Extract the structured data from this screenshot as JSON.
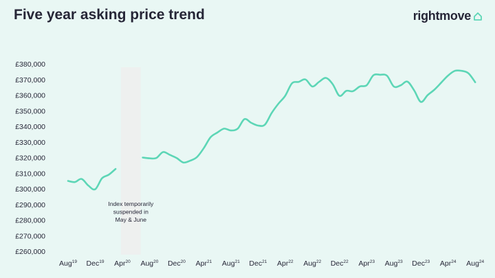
{
  "header": {
    "title": "Five year asking price trend",
    "brand": "rightmove"
  },
  "chart_data": {
    "type": "line",
    "title": "Five year asking price trend",
    "xlabel": "",
    "ylabel": "",
    "ylim": [
      260000,
      380000
    ],
    "y_ticks": [
      {
        "value": 380000,
        "label": "£380,000"
      },
      {
        "value": 370000,
        "label": "£370,000"
      },
      {
        "value": 360000,
        "label": "£360,000"
      },
      {
        "value": 350000,
        "label": "£350,000"
      },
      {
        "value": 340000,
        "label": "£340,000"
      },
      {
        "value": 330000,
        "label": "£330,000"
      },
      {
        "value": 320000,
        "label": "£320,000"
      },
      {
        "value": 310000,
        "label": "£310,000"
      },
      {
        "value": 300000,
        "label": "£300,000"
      },
      {
        "value": 290000,
        "label": "£290,000"
      },
      {
        "value": 280000,
        "label": "£280,000"
      },
      {
        "value": 270000,
        "label": "£270,000"
      },
      {
        "value": 260000,
        "label": "£260,000"
      }
    ],
    "x_ticks": [
      {
        "month": "2019-08",
        "label": "Aug",
        "sup": "19"
      },
      {
        "month": "2019-12",
        "label": "Dec",
        "sup": "19"
      },
      {
        "month": "2020-04",
        "label": "Apr",
        "sup": "20"
      },
      {
        "month": "2020-08",
        "label": "Aug",
        "sup": "20"
      },
      {
        "month": "2020-12",
        "label": "Dec",
        "sup": "20"
      },
      {
        "month": "2021-04",
        "label": "Apr",
        "sup": "21"
      },
      {
        "month": "2021-08",
        "label": "Aug",
        "sup": "21"
      },
      {
        "month": "2021-12",
        "label": "Dec",
        "sup": "21"
      },
      {
        "month": "2022-04",
        "label": "Apr",
        "sup": "22"
      },
      {
        "month": "2022-08",
        "label": "Aug",
        "sup": "22"
      },
      {
        "month": "2022-12",
        "label": "Dec",
        "sup": "22"
      },
      {
        "month": "2023-04",
        "label": "Apr",
        "sup": "23"
      },
      {
        "month": "2023-08",
        "label": "Aug",
        "sup": "23"
      },
      {
        "month": "2023-12",
        "label": "Dec",
        "sup": "23"
      },
      {
        "month": "2024-04",
        "label": "Apr",
        "sup": "24"
      },
      {
        "month": "2024-08",
        "label": "Aug",
        "sup": "24"
      }
    ],
    "series": [
      {
        "segments": [
          [
            [
              "2019-08",
              305000
            ],
            [
              "2019-09",
              304300
            ],
            [
              "2019-10",
              306300
            ],
            [
              "2019-11",
              302000
            ],
            [
              "2019-12",
              299700
            ],
            [
              "2020-01",
              306700
            ],
            [
              "2020-02",
              309000
            ],
            [
              "2020-03",
              312700
            ]
          ],
          [
            [
              "2020-07",
              320000
            ],
            [
              "2020-08",
              319500
            ],
            [
              "2020-09",
              319700
            ],
            [
              "2020-10",
              323500
            ],
            [
              "2020-11",
              321700
            ],
            [
              "2020-12",
              319700
            ],
            [
              "2021-01",
              316800
            ],
            [
              "2021-02",
              318000
            ],
            [
              "2021-03",
              320300
            ],
            [
              "2021-04",
              326000
            ],
            [
              "2021-05",
              333000
            ],
            [
              "2021-06",
              336000
            ],
            [
              "2021-07",
              338500
            ],
            [
              "2021-08",
              337300
            ],
            [
              "2021-09",
              338500
            ],
            [
              "2021-10",
              344600
            ],
            [
              "2021-11",
              342200
            ],
            [
              "2021-12",
              340500
            ],
            [
              "2022-01",
              341000
            ],
            [
              "2022-02",
              348500
            ],
            [
              "2022-03",
              354500
            ],
            [
              "2022-04",
              359500
            ],
            [
              "2022-05",
              367500
            ],
            [
              "2022-06",
              368500
            ],
            [
              "2022-07",
              370000
            ],
            [
              "2022-08",
              365500
            ],
            [
              "2022-09",
              368500
            ],
            [
              "2022-10",
              371000
            ],
            [
              "2022-11",
              367000
            ],
            [
              "2022-12",
              359500
            ],
            [
              "2023-01",
              362700
            ],
            [
              "2023-02",
              362500
            ],
            [
              "2023-03",
              365500
            ],
            [
              "2023-04",
              366300
            ],
            [
              "2023-05",
              372700
            ],
            [
              "2023-06",
              373000
            ],
            [
              "2023-07",
              372400
            ],
            [
              "2023-08",
              365500
            ],
            [
              "2023-09",
              366200
            ],
            [
              "2023-10",
              368600
            ],
            [
              "2023-11",
              363000
            ],
            [
              "2023-12",
              355600
            ],
            [
              "2024-01",
              360000
            ],
            [
              "2024-02",
              363500
            ],
            [
              "2024-03",
              368000
            ],
            [
              "2024-04",
              372500
            ],
            [
              "2024-05",
              375500
            ],
            [
              "2024-06",
              375500
            ],
            [
              "2024-07",
              374000
            ],
            [
              "2024-08",
              368200
            ]
          ]
        ]
      }
    ],
    "shaded_period": {
      "from": "2020-04",
      "to": "2020-06"
    },
    "annotation_lines": [
      "Index temporarily",
      "suspended in",
      "May & June"
    ],
    "colors": {
      "line": "#5dd6b6",
      "shade": "#eef0ef",
      "brand": "#5dd6b6"
    }
  }
}
